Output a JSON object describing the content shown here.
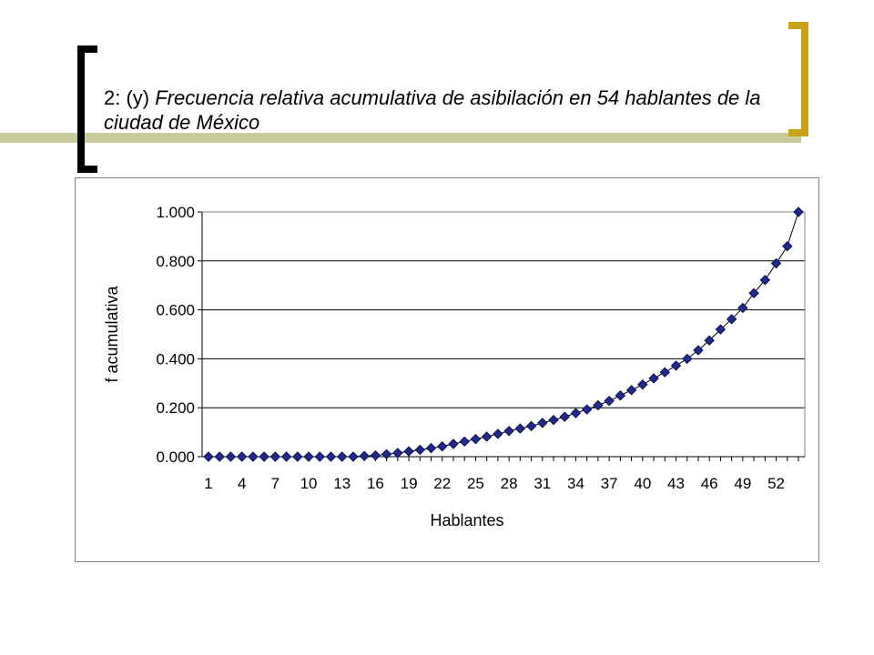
{
  "slide": {
    "title_prefix": "2: (y) ",
    "title_italic": "Frecuencia relativa acumulativa de asibilación en 54 hablantes de la ciudad de México"
  },
  "colors": {
    "title_bar": "#c9cc9a",
    "bracket_left": "#000000",
    "bracket_right": "#c9a217",
    "marker_fill": "#1f2a8c",
    "marker_stroke": "#0a1150",
    "line": "#000000",
    "grid": "#000000"
  },
  "chart_data": {
    "type": "line",
    "xlabel": "Hablantes",
    "ylabel": "f acumulativa",
    "ylim": [
      0,
      1
    ],
    "yticks": [
      "0.000",
      "0.200",
      "0.400",
      "0.600",
      "0.800",
      "1.000"
    ],
    "xtick_labels": [
      "1",
      "4",
      "7",
      "10",
      "13",
      "16",
      "19",
      "22",
      "25",
      "28",
      "31",
      "34",
      "37",
      "40",
      "43",
      "46",
      "49",
      "52"
    ],
    "grid": "horizontal",
    "legend": "none",
    "marker": "diamond",
    "x": [
      1,
      2,
      3,
      4,
      5,
      6,
      7,
      8,
      9,
      10,
      11,
      12,
      13,
      14,
      15,
      16,
      17,
      18,
      19,
      20,
      21,
      22,
      23,
      24,
      25,
      26,
      27,
      28,
      29,
      30,
      31,
      32,
      33,
      34,
      35,
      36,
      37,
      38,
      39,
      40,
      41,
      42,
      43,
      44,
      45,
      46,
      47,
      48,
      49,
      50,
      51,
      52,
      53,
      54
    ],
    "series": [
      {
        "values": [
          0.0,
          0.0,
          0.0,
          0.0,
          0.0,
          0.0,
          0.0,
          0.0,
          0.0,
          0.0,
          0.0,
          0.0,
          0.0,
          0.0,
          0.003,
          0.005,
          0.01,
          0.015,
          0.022,
          0.028,
          0.035,
          0.042,
          0.052,
          0.062,
          0.072,
          0.082,
          0.093,
          0.105,
          0.115,
          0.125,
          0.138,
          0.15,
          0.163,
          0.178,
          0.193,
          0.21,
          0.228,
          0.25,
          0.272,
          0.295,
          0.32,
          0.345,
          0.372,
          0.4,
          0.435,
          0.475,
          0.52,
          0.562,
          0.608,
          0.668,
          0.722,
          0.79,
          0.86,
          1.0
        ]
      }
    ]
  }
}
